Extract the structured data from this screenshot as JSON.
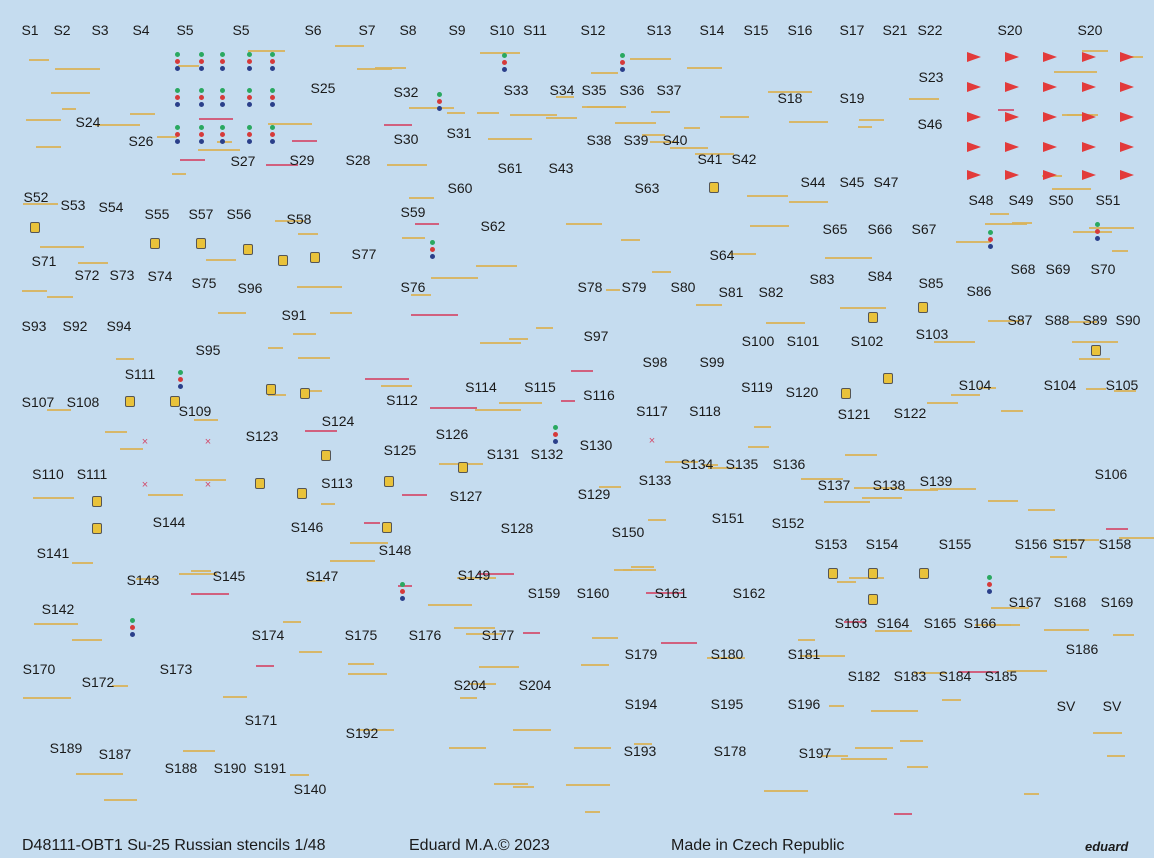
{
  "sheet": {
    "footer_left": "D48111-OBT1 Su-25 Russian stencils 1/48",
    "footer_center": "Eduard M.A.© 2023",
    "footer_right": "Made in Czech Republic",
    "brand": "eduard",
    "colors": {
      "background": "#c5dcef",
      "stencil_yellow": "#d8b35a",
      "stencil_red": "#d24a6a",
      "flag_red": "#e23b3b"
    }
  },
  "labels": [
    "S1",
    "S2",
    "S3",
    "S4",
    "S5",
    "S5",
    "S6",
    "S7",
    "S8",
    "S9",
    "S10",
    "S11",
    "S12",
    "S13",
    "S14",
    "S15",
    "S16",
    "S17",
    "S21",
    "S22",
    "S20",
    "S20",
    "S23",
    "S25",
    "S32",
    "S33",
    "S34",
    "S35",
    "S36",
    "S37",
    "S18",
    "S19",
    "S24",
    "S26",
    "S30",
    "S31",
    "S38",
    "S39",
    "S40",
    "S41",
    "S42",
    "S46",
    "S27",
    "S29",
    "S28",
    "S61",
    "S43",
    "S44",
    "S45",
    "S47",
    "S52",
    "S53",
    "S54",
    "S55",
    "S57",
    "S56",
    "S58",
    "S59",
    "S60",
    "S62",
    "S63",
    "S48",
    "S49",
    "S50",
    "S51",
    "S65",
    "S66",
    "S67",
    "S64",
    "S71",
    "S72",
    "S73",
    "S74",
    "S75",
    "S96",
    "S77",
    "S76",
    "S68",
    "S69",
    "S70",
    "S83",
    "S84",
    "S85",
    "S86",
    "S78",
    "S79",
    "S80",
    "S81",
    "S82",
    "S93",
    "S92",
    "S94",
    "S91",
    "S87",
    "S88",
    "S89",
    "S90",
    "S97",
    "S100",
    "S101",
    "S102",
    "S103",
    "S95",
    "S98",
    "S99",
    "S111",
    "S114",
    "S115",
    "S104",
    "S104",
    "S105",
    "S119",
    "S120",
    "S107",
    "S108",
    "S109",
    "S112",
    "S116",
    "S117",
    "S118",
    "S121",
    "S122",
    "S124",
    "S123",
    "S126",
    "S125",
    "S131",
    "S132",
    "S130",
    "S134",
    "S135",
    "S136",
    "S110",
    "S111",
    "S113",
    "S133",
    "S137",
    "S138",
    "S139",
    "S106",
    "S129",
    "S127",
    "S144",
    "S146",
    "S128",
    "S150",
    "S151",
    "S152",
    "S148",
    "S153",
    "S154",
    "S155",
    "S156",
    "S157",
    "S158",
    "S141",
    "S143",
    "S145",
    "S147",
    "S149",
    "S159",
    "S160",
    "S161",
    "S162",
    "S142",
    "S167",
    "S168",
    "S169",
    "S174",
    "S175",
    "S176",
    "S177",
    "S163",
    "S164",
    "S165",
    "S166",
    "S179",
    "S180",
    "S181",
    "S186",
    "S170",
    "S173",
    "S172",
    "S204",
    "S204",
    "S182",
    "S183",
    "S184",
    "S185",
    "S194",
    "S195",
    "S196",
    "SV",
    "SV",
    "S171",
    "S192",
    "S189",
    "S187",
    "S193",
    "S178",
    "S197",
    "S188",
    "S190",
    "S191",
    "S140"
  ]
}
